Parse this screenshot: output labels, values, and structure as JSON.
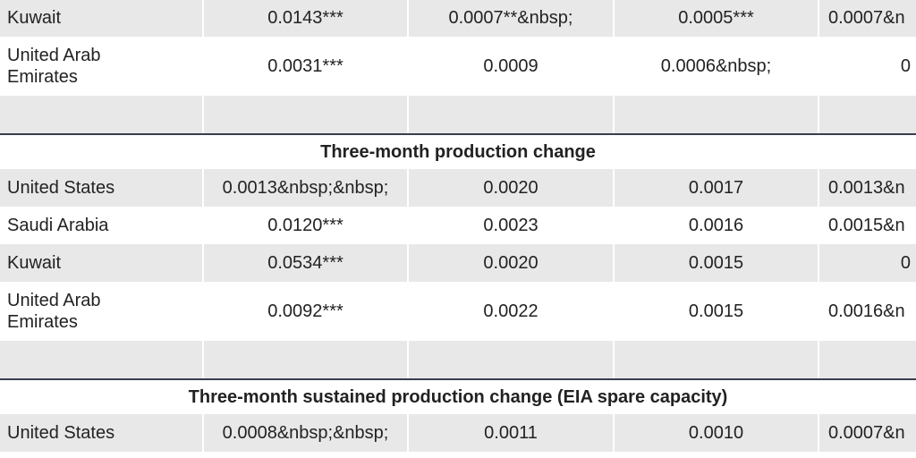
{
  "blocks": [
    {
      "rows": [
        [
          "Kuwait",
          "0.0143***",
          "0.0007**&nbsp;",
          "0.0005***",
          "0.0007&n"
        ],
        [
          "United Arab Emirates",
          "0.0031***",
          "0.0009",
          "0.0006&nbsp;",
          "0"
        ]
      ]
    },
    {
      "heading": "Three-month production change",
      "rows": [
        [
          "United States",
          "0.0013&nbsp;&nbsp;",
          "0.0020",
          "0.0017",
          "0.0013&n"
        ],
        [
          "Saudi Arabia",
          "0.0120***",
          "0.0023",
          "0.0016",
          "0.0015&n"
        ],
        [
          "Kuwait",
          "0.0534***",
          "0.0020",
          "0.0015",
          "0"
        ],
        [
          "United Arab Emirates",
          "0.0092***",
          "0.0022",
          "0.0015",
          "0.0016&n"
        ]
      ]
    },
    {
      "heading": "Three-month sustained production change (EIA spare capacity)",
      "rows": [
        [
          "United States",
          "0.0008&nbsp;&nbsp;",
          "0.0011",
          "0.0010",
          "0.0007&n"
        ]
      ]
    }
  ]
}
